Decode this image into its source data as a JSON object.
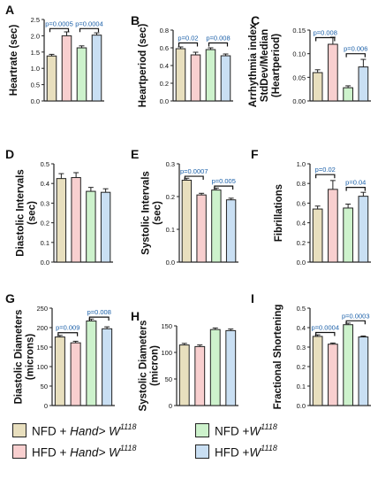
{
  "colors": {
    "nfd_hand": "#e8dfbe",
    "hfd_hand": "#f8cfcf",
    "nfd_w": "#cdf2cc",
    "hfd_w": "#c9dff3",
    "bar_edge": "#222222",
    "sig_text": "#1a5fa8"
  },
  "legend": [
    {
      "group": "NFD",
      "plus": "+",
      "genotype_italic": "Hand> W",
      "sup": "1118",
      "color_key": "nfd_hand"
    },
    {
      "group": "HFD",
      "plus": "+",
      "genotype_italic": "Hand> W",
      "sup": "1118",
      "color_key": "hfd_hand"
    },
    {
      "group": "NFD",
      "plus": "+",
      "genotype_italic": "W",
      "sup": "1118",
      "color_key": "nfd_w"
    },
    {
      "group": "HFD",
      "plus": "+",
      "genotype_italic": "W",
      "sup": "1118",
      "color_key": "hfd_w"
    }
  ],
  "chart_data": [
    {
      "type": "bar",
      "panel": "A",
      "ylabel": [
        "Heartrate (sec)"
      ],
      "ylim": [
        0,
        2.5
      ],
      "ticks": [
        "0.0",
        "0.5",
        "1.0",
        "1.5",
        "2.0",
        "2.5"
      ],
      "values": [
        1.38,
        2.0,
        1.63,
        2.02
      ],
      "errors": [
        0.05,
        0.12,
        0.06,
        0.07
      ],
      "sig": [
        {
          "text": "p=0.0005",
          "from": 0,
          "to": 1,
          "y": 2.22
        },
        {
          "text": "p=0.0004",
          "from": 2,
          "to": 3,
          "y": 2.22
        }
      ]
    },
    {
      "type": "bar",
      "panel": "B",
      "ylabel": [
        "Heartperiod (sec)"
      ],
      "ylim": [
        0,
        0.8
      ],
      "ticks": [
        "0.0",
        "0.2",
        "0.4",
        "0.6",
        "0.8"
      ],
      "values": [
        0.59,
        0.52,
        0.58,
        0.51
      ],
      "errors": [
        0.02,
        0.03,
        0.02,
        0.02
      ],
      "sig": [
        {
          "text": "p=0.02",
          "from": 0,
          "to": 1,
          "y": 0.655
        },
        {
          "text": "p=0.008",
          "from": 2,
          "to": 3,
          "y": 0.655
        }
      ]
    },
    {
      "type": "bar",
      "panel": "C",
      "ylabel": [
        "Arrhythmia index",
        "StdDev/Median",
        "(Heartperiod)"
      ],
      "ylim": [
        0,
        0.15
      ],
      "ticks": [
        "0.00",
        "0.05",
        "0.10",
        "0.15"
      ],
      "values": [
        0.06,
        0.12,
        0.028,
        0.072
      ],
      "errors": [
        0.006,
        0.015,
        0.004,
        0.016
      ],
      "sig": [
        {
          "text": "p=0.008",
          "from": 0,
          "to": 1,
          "y": 0.134
        },
        {
          "text": "p=0.006",
          "from": 2,
          "to": 3,
          "y": 0.1
        }
      ]
    },
    {
      "type": "bar",
      "panel": "D",
      "ylabel": [
        "Diastolic Intervals",
        "(sec)"
      ],
      "ylim": [
        0,
        0.5
      ],
      "ticks": [
        "0.0",
        "0.1",
        "0.2",
        "0.3",
        "0.4",
        "0.5"
      ],
      "values": [
        0.425,
        0.43,
        0.36,
        0.355
      ],
      "errors": [
        0.025,
        0.025,
        0.02,
        0.018
      ],
      "sig": []
    },
    {
      "type": "bar",
      "panel": "E",
      "ylabel": [
        "Systolic Intervals",
        "(sec)"
      ],
      "ylim": [
        0,
        0.3
      ],
      "ticks": [
        "0.0",
        "0.1",
        "0.2",
        "0.3"
      ],
      "values": [
        0.25,
        0.205,
        0.22,
        0.19
      ],
      "errors": [
        0.006,
        0.005,
        0.006,
        0.005
      ],
      "sig": [
        {
          "text": "p=0.0007",
          "from": 0,
          "to": 1,
          "y": 0.262
        },
        {
          "text": "p=0.005",
          "from": 2,
          "to": 3,
          "y": 0.232
        }
      ]
    },
    {
      "type": "bar",
      "panel": "F",
      "ylabel": [
        "Fibrillations"
      ],
      "ylim": [
        0,
        1.0
      ],
      "ticks": [
        "0.0",
        "0.2",
        "0.4",
        "0.6",
        "0.8",
        "1.0"
      ],
      "values": [
        0.54,
        0.74,
        0.55,
        0.67
      ],
      "errors": [
        0.03,
        0.09,
        0.04,
        0.04
      ],
      "sig": [
        {
          "text": "p=0.02",
          "from": 0,
          "to": 1,
          "y": 0.89
        },
        {
          "text": "p=0.04",
          "from": 2,
          "to": 3,
          "y": 0.76
        }
      ]
    },
    {
      "type": "bar",
      "panel": "G",
      "ylabel": [
        "Diastolic Diameters",
        "(microns)"
      ],
      "ylim": [
        0,
        250
      ],
      "ticks": [
        "0",
        "50",
        "100",
        "150",
        "200",
        "250"
      ],
      "values": [
        176,
        161,
        217,
        197
      ],
      "errors": [
        4,
        4,
        5,
        5
      ],
      "sig": [
        {
          "text": "p=0.009",
          "from": 0,
          "to": 1,
          "y": 187
        },
        {
          "text": "p=0.008",
          "from": 2,
          "to": 3,
          "y": 227
        }
      ]
    },
    {
      "type": "bar",
      "panel": "H",
      "ylabel": [
        "Systolic Diameters",
        "(micron)"
      ],
      "ylim": [
        0,
        150
      ],
      "ticks": [
        "0",
        "50",
        "100",
        "150"
      ],
      "values": [
        114,
        111,
        143,
        141
      ],
      "errors": [
        3,
        3,
        3,
        3
      ],
      "sig": []
    },
    {
      "type": "bar",
      "panel": "I",
      "ylabel": [
        "Fractional Shortening"
      ],
      "ylim": [
        0,
        0.5
      ],
      "ticks": [
        "0.0",
        "0.1",
        "0.2",
        "0.3",
        "0.4",
        "0.5"
      ],
      "values": [
        0.355,
        0.315,
        0.415,
        0.352
      ],
      "errors": [
        0.008,
        0.006,
        0.008,
        0.005
      ],
      "sig": [
        {
          "text": "p=0.0004",
          "from": 0,
          "to": 1,
          "y": 0.375
        },
        {
          "text": "p=0.0003",
          "from": 2,
          "to": 3,
          "y": 0.435
        }
      ]
    }
  ]
}
